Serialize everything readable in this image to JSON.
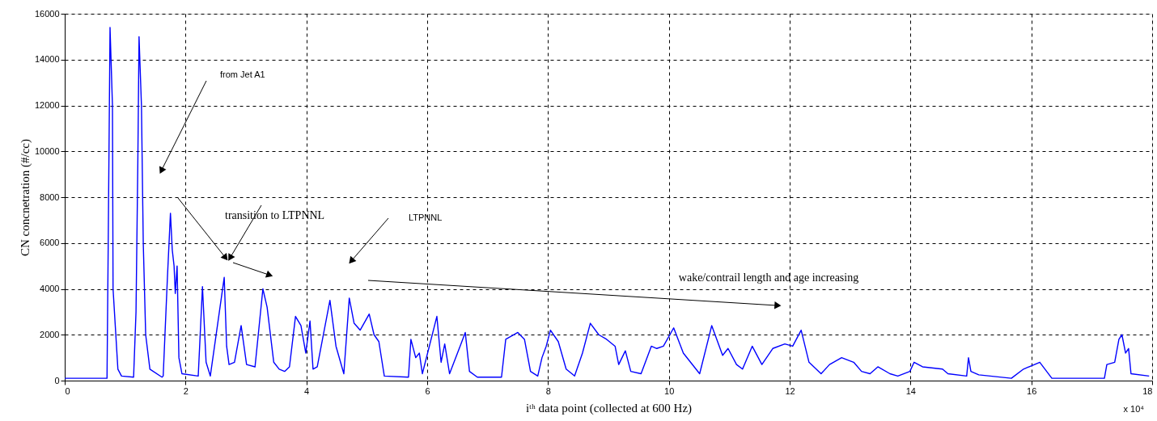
{
  "chart_data": {
    "type": "line",
    "xlabel": "iᵗʰ data point (collected at 600 Hz)",
    "ylabel": "CN concnetration (#/cc)",
    "xlim": [
      0,
      18
    ],
    "xticks": [
      0,
      2,
      4,
      6,
      8,
      10,
      12,
      14,
      16,
      18
    ],
    "ylim": [
      0,
      16000
    ],
    "yticks": [
      0,
      2000,
      4000,
      6000,
      8000,
      10000,
      12000,
      14000,
      16000
    ],
    "grid": true,
    "line_style": "solid",
    "marker": "none",
    "annotations": [
      "from Jet A1",
      "transition to LTPNNL",
      "LTPNNL",
      "wake/contrail  length and age increasing",
      "x 10⁴"
    ],
    "series": [
      {
        "color": "#0000ff",
        "x": [
          0,
          0.7,
          0.72,
          0.75,
          0.79,
          0.8,
          0.88,
          0.94,
          1.14,
          1.18,
          1.21,
          1.23,
          1.27,
          1.3,
          1.34,
          1.41,
          1.61,
          1.63,
          1.7,
          1.75,
          1.78,
          1.81,
          1.83,
          1.86,
          1.89,
          1.94,
          2.21,
          2.28,
          2.34,
          2.41,
          2.64,
          2.68,
          2.72,
          2.81,
          2.92,
          3.01,
          3.15,
          3.28,
          3.35,
          3.46,
          3.55,
          3.64,
          3.72,
          3.82,
          3.91,
          3.99,
          4.06,
          4.11,
          4.18,
          4.39,
          4.49,
          4.62,
          4.71,
          4.79,
          4.89,
          5.04,
          5.12,
          5.2,
          5.29,
          5.69,
          5.73,
          5.81,
          5.87,
          5.92,
          6.16,
          6.23,
          6.29,
          6.37,
          6.56,
          6.63,
          6.7,
          6.83,
          7.23,
          7.3,
          7.5,
          7.61,
          7.71,
          7.83,
          7.9,
          7.97,
          8.04,
          8.17,
          8.3,
          8.44,
          8.57,
          8.7,
          8.84,
          8.97,
          9.11,
          9.17,
          9.28,
          9.37,
          9.54,
          9.71,
          9.8,
          9.91,
          10.08,
          10.24,
          10.51,
          10.71,
          10.89,
          10.98,
          11.12,
          11.22,
          11.38,
          11.54,
          11.72,
          11.92,
          12.05,
          12.19,
          12.32,
          12.52,
          12.66,
          12.86,
          13.06,
          13.19,
          13.33,
          13.46,
          13.66,
          13.79,
          13.99,
          14.06,
          14.2,
          14.53,
          14.62,
          14.93,
          14.96,
          15.0,
          15.13,
          15.67,
          15.87,
          16.14,
          16.34,
          17.21,
          17.25,
          17.38,
          17.45,
          17.5,
          17.56,
          17.61,
          17.65,
          17.95
        ],
        "values": [
          100,
          100,
          6000,
          15400,
          12000,
          4000,
          500,
          200,
          150,
          3000,
          9500,
          15000,
          12000,
          6000,
          2000,
          500,
          150,
          200,
          4500,
          7300,
          5700,
          5000,
          3800,
          5000,
          1000,
          300,
          200,
          4100,
          800,
          200,
          4500,
          1500,
          700,
          800,
          2400,
          700,
          600,
          4000,
          3200,
          800,
          500,
          400,
          600,
          2800,
          2400,
          1200,
          2600,
          500,
          600,
          3500,
          1500,
          300,
          3600,
          2500,
          2200,
          2900,
          2000,
          1700,
          200,
          150,
          1800,
          1000,
          1200,
          300,
          2800,
          800,
          1600,
          300,
          1600,
          2100,
          400,
          150,
          150,
          1800,
          2100,
          1800,
          400,
          200,
          1000,
          1500,
          2200,
          1700,
          500,
          200,
          1200,
          2500,
          2000,
          1800,
          1500,
          700,
          1300,
          400,
          300,
          1500,
          1400,
          1500,
          2300,
          1200,
          300,
          2400,
          1100,
          1400,
          700,
          500,
          1500,
          700,
          1400,
          1600,
          1500,
          2200,
          800,
          300,
          700,
          1000,
          800,
          400,
          300,
          600,
          300,
          200,
          400,
          800,
          600,
          500,
          300,
          200,
          1000,
          400,
          250,
          100,
          500,
          800,
          100,
          100,
          700,
          800,
          1800,
          2000,
          1200,
          1400,
          300,
          200
        ]
      }
    ]
  }
}
